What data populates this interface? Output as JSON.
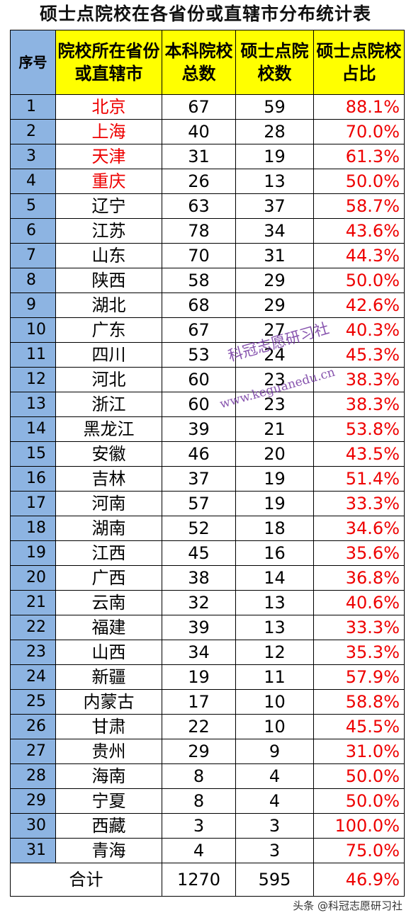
{
  "title": "硕士点院校在各省份或直辖市分布统计表",
  "headers": [
    "序号",
    "院校所在省份或直辖市",
    "本科院校总数",
    "硕士点院校数",
    "硕士点院校占比"
  ],
  "rows": [
    {
      "idx": "1",
      "prov": "北京",
      "total": "67",
      "master": "59",
      "pct": "88.1%",
      "highlight": true
    },
    {
      "idx": "2",
      "prov": "上海",
      "total": "40",
      "master": "28",
      "pct": "70.0%",
      "highlight": true
    },
    {
      "idx": "3",
      "prov": "天津",
      "total": "31",
      "master": "19",
      "pct": "61.3%",
      "highlight": true
    },
    {
      "idx": "4",
      "prov": "重庆",
      "total": "26",
      "master": "13",
      "pct": "50.0%",
      "highlight": true
    },
    {
      "idx": "5",
      "prov": "辽宁",
      "total": "63",
      "master": "37",
      "pct": "58.7%",
      "highlight": false
    },
    {
      "idx": "6",
      "prov": "江苏",
      "total": "78",
      "master": "34",
      "pct": "43.6%",
      "highlight": false
    },
    {
      "idx": "7",
      "prov": "山东",
      "total": "70",
      "master": "31",
      "pct": "44.3%",
      "highlight": false
    },
    {
      "idx": "8",
      "prov": "陕西",
      "total": "58",
      "master": "29",
      "pct": "50.0%",
      "highlight": false
    },
    {
      "idx": "9",
      "prov": "湖北",
      "total": "68",
      "master": "29",
      "pct": "42.6%",
      "highlight": false
    },
    {
      "idx": "10",
      "prov": "广东",
      "total": "67",
      "master": "27",
      "pct": "40.3%",
      "highlight": false
    },
    {
      "idx": "11",
      "prov": "四川",
      "total": "53",
      "master": "24",
      "pct": "45.3%",
      "highlight": false
    },
    {
      "idx": "12",
      "prov": "河北",
      "total": "60",
      "master": "23",
      "pct": "38.3%",
      "highlight": false
    },
    {
      "idx": "13",
      "prov": "浙江",
      "total": "60",
      "master": "23",
      "pct": "38.3%",
      "highlight": false
    },
    {
      "idx": "14",
      "prov": "黑龙江",
      "total": "39",
      "master": "21",
      "pct": "53.8%",
      "highlight": false
    },
    {
      "idx": "15",
      "prov": "安徽",
      "total": "46",
      "master": "20",
      "pct": "43.5%",
      "highlight": false
    },
    {
      "idx": "16",
      "prov": "吉林",
      "total": "37",
      "master": "19",
      "pct": "51.4%",
      "highlight": false
    },
    {
      "idx": "17",
      "prov": "河南",
      "total": "57",
      "master": "19",
      "pct": "33.3%",
      "highlight": false
    },
    {
      "idx": "18",
      "prov": "湖南",
      "total": "52",
      "master": "18",
      "pct": "34.6%",
      "highlight": false
    },
    {
      "idx": "19",
      "prov": "江西",
      "total": "45",
      "master": "16",
      "pct": "35.6%",
      "highlight": false
    },
    {
      "idx": "20",
      "prov": "广西",
      "total": "38",
      "master": "14",
      "pct": "36.8%",
      "highlight": false
    },
    {
      "idx": "21",
      "prov": "云南",
      "total": "32",
      "master": "13",
      "pct": "40.6%",
      "highlight": false
    },
    {
      "idx": "22",
      "prov": "福建",
      "total": "39",
      "master": "13",
      "pct": "33.3%",
      "highlight": false
    },
    {
      "idx": "23",
      "prov": "山西",
      "total": "34",
      "master": "12",
      "pct": "35.3%",
      "highlight": false
    },
    {
      "idx": "24",
      "prov": "新疆",
      "total": "19",
      "master": "11",
      "pct": "57.9%",
      "highlight": false
    },
    {
      "idx": "25",
      "prov": "内蒙古",
      "total": "17",
      "master": "10",
      "pct": "58.8%",
      "highlight": false
    },
    {
      "idx": "26",
      "prov": "甘肃",
      "total": "22",
      "master": "10",
      "pct": "45.5%",
      "highlight": false
    },
    {
      "idx": "27",
      "prov": "贵州",
      "total": "29",
      "master": "9",
      "pct": "31.0%",
      "highlight": false
    },
    {
      "idx": "28",
      "prov": "海南",
      "total": "8",
      "master": "4",
      "pct": "50.0%",
      "highlight": false
    },
    {
      "idx": "29",
      "prov": "宁夏",
      "total": "8",
      "master": "4",
      "pct": "50.0%",
      "highlight": false
    },
    {
      "idx": "30",
      "prov": "西藏",
      "total": "3",
      "master": "3",
      "pct": "100.0%",
      "highlight": false
    },
    {
      "idx": "31",
      "prov": "青海",
      "total": "4",
      "master": "3",
      "pct": "75.0%",
      "highlight": false
    }
  ],
  "totals": {
    "label": "合计",
    "total": "1270",
    "master": "595",
    "pct": "46.9%"
  },
  "watermark": {
    "line1": "科冠志愿研习社",
    "line2": "www.keguanedu.cn"
  },
  "footer": "头条 @科冠志愿研习社",
  "colors": {
    "header_bg": "#ffff00",
    "index_bg": "#8db4e2",
    "highlight_red": "#ee0000"
  }
}
